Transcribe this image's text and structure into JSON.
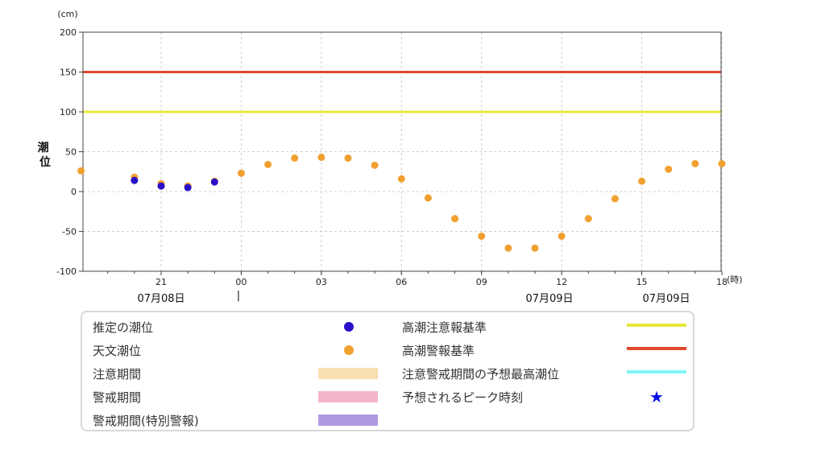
{
  "chart_data": {
    "type": "scatter",
    "y_unit": "(cm)",
    "x_unit": "(時)",
    "ylabel": "潮位",
    "ylim": [
      -100,
      200
    ],
    "y_ticks": [
      200,
      150,
      100,
      50,
      0,
      -50,
      -100
    ],
    "x_tick_labels": [
      "21",
      "00",
      "03",
      "06",
      "09",
      "12",
      "15",
      "18"
    ],
    "date_labels": [
      "07月08日",
      "07月09日",
      "07月09日"
    ],
    "date_marker": "|",
    "grid": true,
    "reference_lines": [
      {
        "name": "高潮注意報基準",
        "value": 100,
        "color": "#e8e83c"
      },
      {
        "name": "高潮警報基準",
        "value": 150,
        "color": "#e04a2c"
      }
    ],
    "series": [
      {
        "name": "天文潮位",
        "color": "#f0a030",
        "x": [
          "18:00",
          "20:00",
          "21:00",
          "22:00",
          "23:00",
          "00:00",
          "01:00",
          "02:00",
          "03:00",
          "04:00",
          "05:00",
          "06:00",
          "07:00",
          "08:00",
          "09:00",
          "10:00",
          "11:00",
          "12:00",
          "13:00",
          "14:00",
          "15:00",
          "16:00",
          "17:00",
          "18:00"
        ],
        "values": [
          26,
          18,
          10,
          7,
          13,
          23,
          34,
          42,
          43,
          42,
          33,
          16,
          -8,
          -34,
          -56,
          -71,
          -71,
          -56,
          -34,
          -9,
          13,
          28,
          35,
          35
        ]
      },
      {
        "name": "推定の潮位",
        "color": "#2a10c8",
        "x": [
          "20:00",
          "21:00",
          "22:00",
          "23:00"
        ],
        "values": [
          14,
          7,
          5,
          12
        ]
      }
    ]
  },
  "legend": {
    "items": [
      {
        "label": "推定の潮位",
        "type": "dot",
        "color": "#2a10c8"
      },
      {
        "label": "天文潮位",
        "type": "dot",
        "color": "#f0a030"
      },
      {
        "label": "注意期間",
        "type": "bar",
        "color": "#f8dfb0"
      },
      {
        "label": "警戒期間",
        "type": "bar",
        "color": "#f4b4cc"
      },
      {
        "label": "警戒期間(特別警報)",
        "type": "bar",
        "color": "#b09ae0"
      },
      {
        "label": "高潮注意報基準",
        "type": "line",
        "color": "#e8e83c"
      },
      {
        "label": "高潮警報基準",
        "type": "line",
        "color": "#e04a2c"
      },
      {
        "label": "注意警戒期間の予想最高潮位",
        "type": "line",
        "color": "#80f4f4"
      },
      {
        "label": "予想されるピーク時刻",
        "type": "star",
        "color": "#0a10e8",
        "glyph": "★"
      }
    ]
  }
}
